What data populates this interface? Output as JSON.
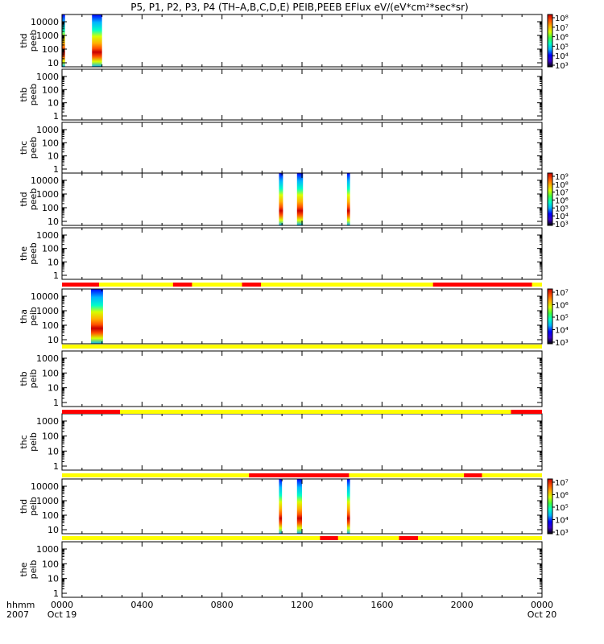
{
  "title": "P5, P1, P2, P3, P4 (TH–A,B,C,D,E) PEIB,PEEB EFlux eV/(eV*cm²*sec*sr)",
  "x_axis": {
    "row_label_top": "hhmm",
    "row_label_bottom": "2007",
    "ticks": [
      "0000",
      "0400",
      "0800",
      "1200",
      "1600",
      "2000",
      "0000"
    ],
    "start_date_label": "Oct 19",
    "end_date_label": "Oct 20"
  },
  "colors": {
    "bar_yellow": "#ffff00",
    "bar_red": "#ff0000",
    "colormap": [
      "#000000",
      "#3b00c8",
      "#0000ff",
      "#00b4ff",
      "#00ffc8",
      "#40ff40",
      "#d8ff00",
      "#ffb000",
      "#ff5000",
      "#c80000"
    ]
  },
  "chart_data": {
    "type": "heatmap",
    "x_unit": "hours since 0000 Oct 19 2007",
    "xlim": [
      0,
      24
    ],
    "panels": [
      {
        "label_top": "thd",
        "label_bottom": "peeb",
        "yticks": [
          "10",
          "100",
          "1000",
          "10000"
        ],
        "has_data": true,
        "colorbar": {
          "ticks": [
            "10³",
            "10⁴",
            "10⁵",
            "10⁶",
            "10⁷",
            "10⁸"
          ]
        },
        "spectra_intervals": [
          [
            0.0,
            0.15
          ],
          [
            1.5,
            2.0
          ]
        ]
      },
      {
        "label_top": "thb",
        "label_bottom": "peeb",
        "yticks": [
          "1",
          "10",
          "100",
          "1000"
        ],
        "has_data": false
      },
      {
        "label_top": "thc",
        "label_bottom": "peeb",
        "yticks": [
          "1",
          "10",
          "100",
          "1000"
        ],
        "has_data": false
      },
      {
        "label_top": "thd",
        "label_bottom": "peeb",
        "yticks": [
          "10",
          "100",
          "1000",
          "10000"
        ],
        "has_data": true,
        "colorbar": {
          "ticks": [
            "10³",
            "10⁴",
            "10⁵",
            "10⁶",
            "10⁷",
            "10⁸",
            "10⁹"
          ]
        },
        "spectra_intervals": [
          [
            10.85,
            11.05
          ],
          [
            11.75,
            12.05
          ],
          [
            14.25,
            14.4
          ]
        ]
      },
      {
        "label_top": "the",
        "label_bottom": "peeb",
        "yticks": [
          "1",
          "10",
          "100",
          "1000"
        ],
        "has_data": false
      },
      {
        "label_top": "tha",
        "label_bottom": "peib",
        "yticks": [
          "10",
          "100",
          "1000",
          "10000"
        ],
        "has_data": true,
        "colorbar": {
          "ticks": [
            "10³",
            "10⁴",
            "10⁵",
            "10⁶",
            "10⁷"
          ]
        },
        "spectra_intervals": [
          [
            1.45,
            2.05
          ]
        ],
        "mode_bar": {
          "red": [
            [
              0.0,
              1.85
            ],
            [
              5.55,
              6.5
            ],
            [
              9.0,
              9.95
            ],
            [
              18.55,
              23.5
            ]
          ]
        }
      },
      {
        "label_top": "thb",
        "label_bottom": "peib",
        "yticks": [
          "1",
          "10",
          "100",
          "1000"
        ],
        "has_data": false,
        "mode_bar": {
          "red": []
        }
      },
      {
        "label_top": "thc",
        "label_bottom": "peib",
        "yticks": [
          "1",
          "10",
          "100",
          "1000"
        ],
        "has_data": false,
        "mode_bar": {
          "red": [
            [
              0.0,
              2.9
            ],
            [
              22.45,
              24.0
            ]
          ]
        }
      },
      {
        "label_top": "thd",
        "label_bottom": "peib",
        "yticks": [
          "10",
          "100",
          "1000",
          "10000"
        ],
        "has_data": true,
        "colorbar": {
          "ticks": [
            "10³",
            "10⁴",
            "10⁵",
            "10⁶",
            "10⁷"
          ]
        },
        "spectra_intervals": [
          [
            10.85,
            11.0
          ],
          [
            11.75,
            12.0
          ],
          [
            14.25,
            14.4
          ]
        ],
        "mode_bar": {
          "red": [
            [
              9.35,
              14.35
            ],
            [
              20.1,
              21.0
            ]
          ]
        }
      },
      {
        "label_top": "the",
        "label_bottom": "peib",
        "yticks": [
          "1",
          "10",
          "100",
          "1000"
        ],
        "has_data": false,
        "mode_bar": {
          "red": [
            [
              12.9,
              13.8
            ],
            [
              16.85,
              17.8
            ]
          ]
        }
      }
    ]
  }
}
